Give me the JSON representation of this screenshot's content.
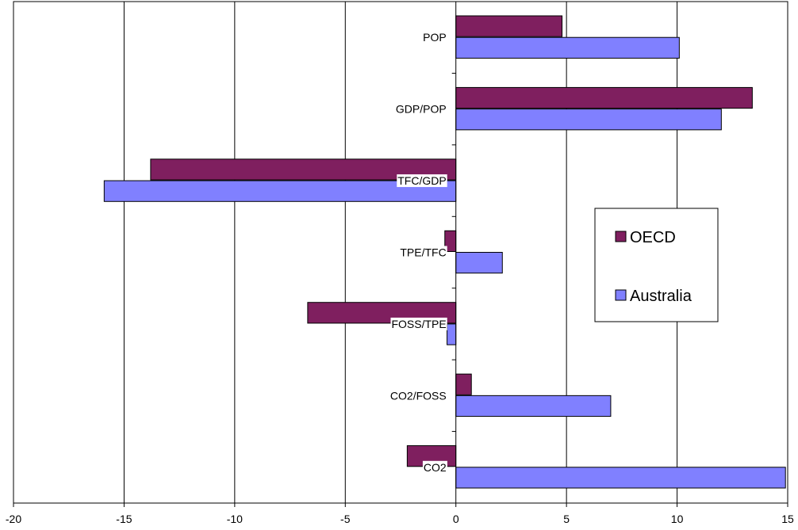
{
  "chart_data": {
    "type": "bar",
    "orientation": "horizontal",
    "categories": [
      "POP",
      "GDP/POP",
      "TFC/GDP",
      "TPE/TFC",
      "FOSS/TPE",
      "CO2/FOSS",
      "CO2"
    ],
    "series": [
      {
        "name": "OECD",
        "values": [
          4.8,
          13.4,
          -13.8,
          -0.5,
          -6.7,
          0.7,
          -2.2
        ],
        "color": "#7f1f5f"
      },
      {
        "name": "Australia",
        "values": [
          10.1,
          12.0,
          -15.9,
          2.1,
          -0.4,
          7.0,
          14.9
        ],
        "color": "#8080ff"
      }
    ],
    "xlim": [
      -20,
      15
    ],
    "xticks": [
      "-20",
      "-15",
      "-10",
      "-5",
      "0",
      "5",
      "10",
      "15"
    ],
    "grid": true,
    "legend_position": "right",
    "title": "",
    "xlabel": "",
    "ylabel": ""
  }
}
